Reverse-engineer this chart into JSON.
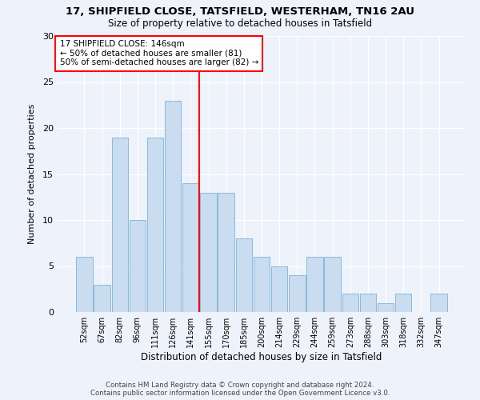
{
  "title1": "17, SHIPFIELD CLOSE, TATSFIELD, WESTERHAM, TN16 2AU",
  "title2": "Size of property relative to detached houses in Tatsfield",
  "xlabel": "Distribution of detached houses by size in Tatsfield",
  "ylabel": "Number of detached properties",
  "bar_labels": [
    "52sqm",
    "67sqm",
    "82sqm",
    "96sqm",
    "111sqm",
    "126sqm",
    "141sqm",
    "155sqm",
    "170sqm",
    "185sqm",
    "200sqm",
    "214sqm",
    "229sqm",
    "244sqm",
    "259sqm",
    "273sqm",
    "288sqm",
    "303sqm",
    "318sqm",
    "332sqm",
    "347sqm"
  ],
  "bar_values": [
    6,
    3,
    19,
    10,
    19,
    23,
    14,
    13,
    13,
    8,
    6,
    5,
    4,
    6,
    6,
    2,
    2,
    1,
    2,
    0,
    2
  ],
  "bar_color": "#c9dcf0",
  "bar_edge_color": "#7ab4d8",
  "vline_index": 6.5,
  "vline_color": "red",
  "annotation_title": "17 SHIPFIELD CLOSE: 146sqm",
  "annotation_line1": "← 50% of detached houses are smaller (81)",
  "annotation_line2": "50% of semi-detached houses are larger (82) →",
  "ylim": [
    0,
    30
  ],
  "yticks": [
    0,
    5,
    10,
    15,
    20,
    25,
    30
  ],
  "footer1": "Contains HM Land Registry data © Crown copyright and database right 2024.",
  "footer2": "Contains public sector information licensed under the Open Government Licence v3.0.",
  "background_color": "#eef2fa"
}
